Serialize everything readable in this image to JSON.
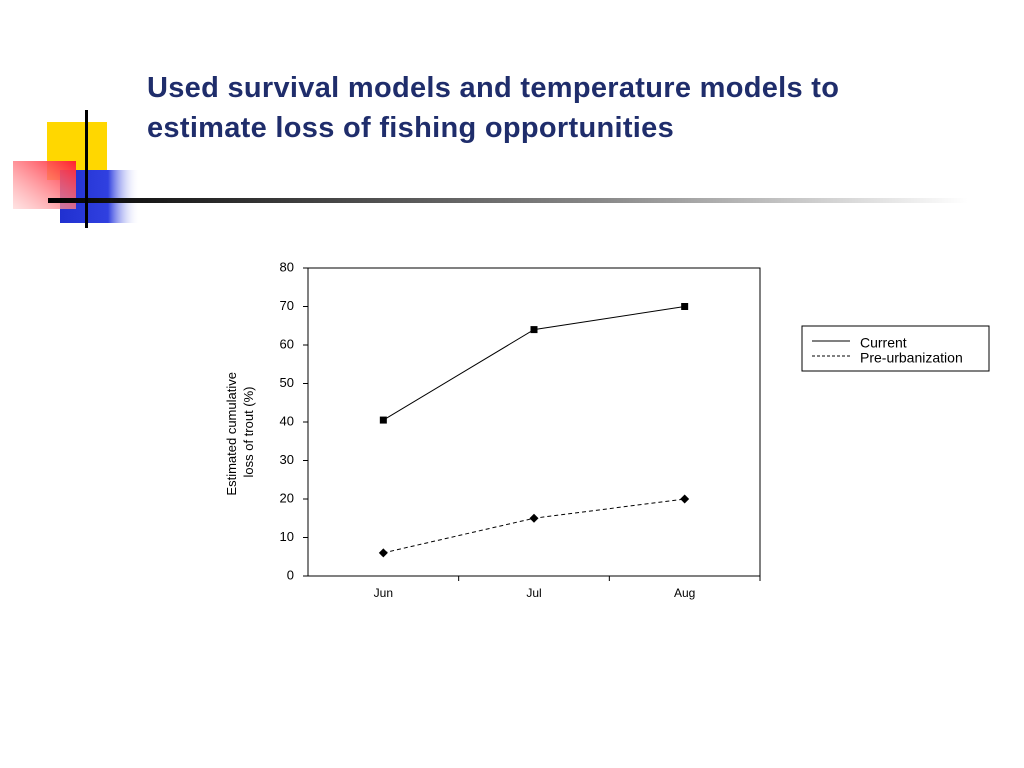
{
  "chart_data": {
    "type": "line",
    "title": "Used survival models and temperature models to estimate loss of fishing opportunities",
    "ylabel": [
      "Estimated cumulative",
      "loss of trout (%)"
    ],
    "categories": [
      "Jun",
      "Jul",
      "Aug"
    ],
    "series": [
      {
        "name": "Current",
        "color": "#000000",
        "dash": "solid",
        "marker": "square",
        "values": [
          40.5,
          64,
          70
        ]
      },
      {
        "name": "Pre-urbanization",
        "color": "#000000",
        "dash": "dashed",
        "marker": "diamond",
        "values": [
          6,
          15,
          20
        ]
      }
    ],
    "ylim": [
      0,
      80
    ],
    "yticks": [
      0,
      10,
      20,
      30,
      40,
      50,
      60,
      70,
      80
    ],
    "grid": false,
    "legend": "right"
  }
}
